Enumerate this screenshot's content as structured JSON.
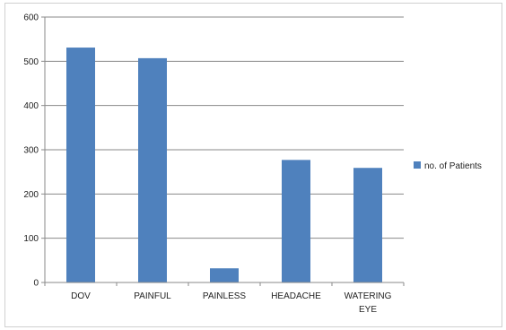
{
  "chart_data": {
    "type": "bar",
    "categories": [
      "DOV",
      "PAINFUL",
      "PAINLESS",
      "HEADACHE",
      "WATERING EYE"
    ],
    "category_lines": [
      [
        "DOV"
      ],
      [
        "PAINFUL"
      ],
      [
        "PAINLESS"
      ],
      [
        "HEADACHE"
      ],
      [
        "WATERING",
        "EYE"
      ]
    ],
    "series": [
      {
        "name": "no. of Patients",
        "values": [
          531,
          507,
          32,
          277,
          259
        ]
      }
    ],
    "xlabel": "",
    "ylabel": "",
    "ylim": [
      0,
      600
    ],
    "yticks": [
      0,
      100,
      200,
      300,
      400,
      500,
      600
    ],
    "grid": true,
    "legend_position": "right",
    "colors": {
      "bar": "#4f81bd",
      "grid": "#8a8a8a",
      "axis": "#8a8a8a"
    }
  }
}
